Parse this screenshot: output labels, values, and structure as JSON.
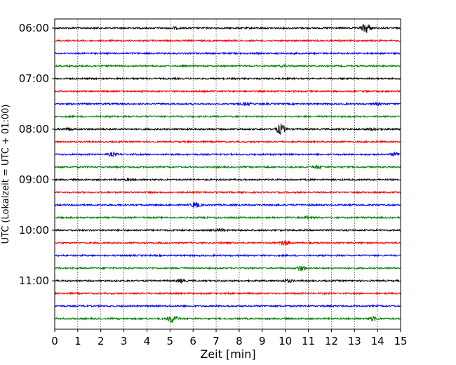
{
  "chart_data": {
    "type": "line",
    "description_kind": "seismogram helicorder",
    "xlabel": "Zeit  [min]",
    "ylabel": "UTC (Lokalzeit = UTC + 01:00)",
    "xlim": [
      0,
      15
    ],
    "x_ticks": [
      0,
      1,
      2,
      3,
      4,
      5,
      6,
      7,
      8,
      9,
      10,
      11,
      12,
      13,
      14,
      15
    ],
    "x_gridlines": "dotted vertical at each minute",
    "y_tick_labels": [
      "06:00",
      "07:00",
      "08:00",
      "09:00",
      "10:00",
      "11:00"
    ],
    "trace_colors": [
      "#000000",
      "#ff0000",
      "#0000ff",
      "#008000"
    ],
    "traces": [
      {
        "start": "06:00",
        "color": "#000000",
        "events": [
          [
            5.2,
            0.5
          ],
          [
            13.5,
            3.0
          ]
        ]
      },
      {
        "start": "06:15",
        "color": "#ff0000",
        "events": []
      },
      {
        "start": "06:30",
        "color": "#0000ff",
        "events": []
      },
      {
        "start": "06:45",
        "color": "#008000",
        "events": [
          [
            10.0,
            0.5
          ]
        ]
      },
      {
        "start": "07:00",
        "color": "#000000",
        "events": []
      },
      {
        "start": "07:15",
        "color": "#ff0000",
        "events": []
      },
      {
        "start": "07:30",
        "color": "#0000ff",
        "events": [
          [
            8.3,
            0.8
          ],
          [
            14.0,
            0.6
          ]
        ]
      },
      {
        "start": "07:45",
        "color": "#008000",
        "events": []
      },
      {
        "start": "08:00",
        "color": "#000000",
        "events": [
          [
            0.6,
            0.8
          ],
          [
            9.8,
            3.2
          ],
          [
            13.8,
            0.8
          ]
        ]
      },
      {
        "start": "08:15",
        "color": "#ff0000",
        "events": []
      },
      {
        "start": "08:30",
        "color": "#0000ff",
        "events": [
          [
            2.5,
            1.0
          ],
          [
            14.8,
            1.2
          ]
        ]
      },
      {
        "start": "08:45",
        "color": "#008000",
        "events": [
          [
            11.4,
            1.0
          ]
        ]
      },
      {
        "start": "09:00",
        "color": "#000000",
        "events": [
          [
            3.2,
            0.5
          ]
        ]
      },
      {
        "start": "09:15",
        "color": "#ff0000",
        "events": []
      },
      {
        "start": "09:30",
        "color": "#0000ff",
        "events": [
          [
            6.1,
            1.6
          ]
        ]
      },
      {
        "start": "09:45",
        "color": "#008000",
        "events": [
          [
            11.0,
            0.8
          ]
        ]
      },
      {
        "start": "10:00",
        "color": "#000000",
        "events": [
          [
            7.2,
            0.6
          ]
        ]
      },
      {
        "start": "10:15",
        "color": "#ff0000",
        "events": [
          [
            10.0,
            1.4
          ]
        ]
      },
      {
        "start": "10:30",
        "color": "#0000ff",
        "events": []
      },
      {
        "start": "10:45",
        "color": "#008000",
        "events": [
          [
            10.7,
            1.6
          ]
        ]
      },
      {
        "start": "11:00",
        "color": "#000000",
        "events": [
          [
            5.5,
            1.0
          ],
          [
            10.1,
            1.0
          ]
        ]
      },
      {
        "start": "11:15",
        "color": "#ff0000",
        "events": []
      },
      {
        "start": "11:30",
        "color": "#0000ff",
        "events": []
      },
      {
        "start": "11:45",
        "color": "#008000",
        "events": [
          [
            5.1,
            2.6
          ],
          [
            13.8,
            1.2
          ]
        ]
      }
    ]
  }
}
